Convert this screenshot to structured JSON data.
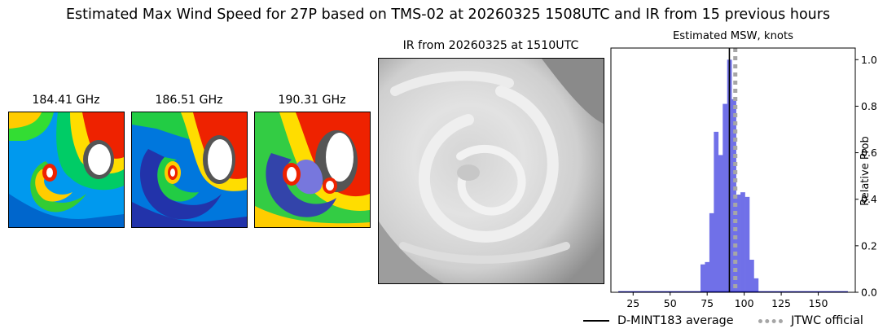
{
  "title": "Estimated Max Wind Speed for 27P based on TMS-02 at 20260325 1508UTC and IR from 15 previous hours",
  "panels": [
    {
      "label": "184.41 GHz"
    },
    {
      "label": "186.51 GHz"
    },
    {
      "label": "190.31 GHz"
    }
  ],
  "ir_panel": {
    "label": "IR from 20260325 at 1510UTC"
  },
  "colors": {
    "histogram": "#7070e8",
    "average_line": "#000000",
    "official_line": "#a6a6a6",
    "baseline": "#0000aa"
  },
  "chart_data": {
    "type": "bar",
    "title": "Estimated MSW, knots",
    "xlabel": "",
    "ylabel": "Relative Prob",
    "xlim": [
      10,
      175
    ],
    "ylim": [
      0,
      1.05
    ],
    "x_ticks": [
      25,
      50,
      75,
      100,
      125,
      150
    ],
    "y_ticks": [
      0.0,
      0.2,
      0.4,
      0.6,
      0.8,
      1.0
    ],
    "y_tick_labels": [
      "0.0",
      "0.2",
      "0.4",
      "0.6",
      "0.8",
      "1.0"
    ],
    "y_axis_side": "right",
    "bin_width": 3,
    "bins": [
      {
        "x": 72,
        "value": 0.12
      },
      {
        "x": 75,
        "value": 0.13
      },
      {
        "x": 78,
        "value": 0.34
      },
      {
        "x": 81,
        "value": 0.69
      },
      {
        "x": 84,
        "value": 0.59
      },
      {
        "x": 87,
        "value": 0.81
      },
      {
        "x": 90,
        "value": 1.0
      },
      {
        "x": 93,
        "value": 0.83
      },
      {
        "x": 96,
        "value": 0.42
      },
      {
        "x": 99,
        "value": 0.43
      },
      {
        "x": 102,
        "value": 0.41
      },
      {
        "x": 105,
        "value": 0.14
      },
      {
        "x": 108,
        "value": 0.06
      }
    ],
    "average_line": {
      "name": "D-MINT183 average",
      "x": 90
    },
    "official_line": {
      "name": "JTWC official",
      "x": 94
    },
    "legend_placement": "bottom-right"
  }
}
